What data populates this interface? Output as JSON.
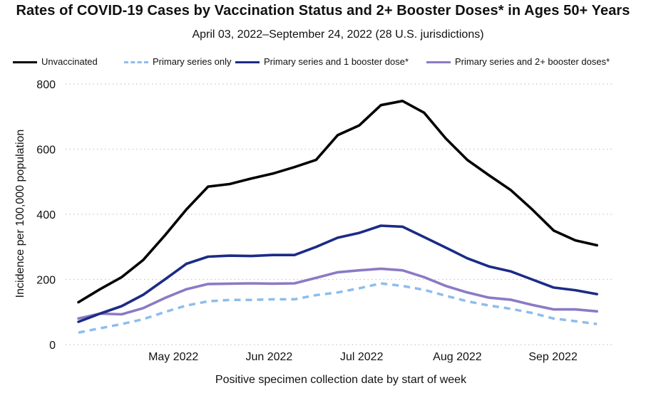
{
  "chart_data": {
    "type": "line",
    "title": "Rates of COVID-19 Cases by Vaccination Status and 2+ Booster Doses* in Ages 50+ Years",
    "subtitle": "April 03, 2022–September 24, 2022 (28 U.S. jurisdictions)",
    "xlabel": "Positive specimen collection date by start of week",
    "ylabel": "Incidence per 100,000 population",
    "ylim": [
      0,
      800
    ],
    "yticks": [
      "0",
      "200",
      "400",
      "600",
      "800"
    ],
    "xtick_labels": [
      "May 2022",
      "Jun 2022",
      "Jul 2022",
      "Aug 2022",
      "Sep 2022"
    ],
    "grid": "horizontal dotted",
    "legend_position": "top",
    "x": [
      "2022-04-03",
      "2022-04-10",
      "2022-04-17",
      "2022-04-24",
      "2022-05-01",
      "2022-05-08",
      "2022-05-15",
      "2022-05-22",
      "2022-05-29",
      "2022-06-05",
      "2022-06-12",
      "2022-06-19",
      "2022-06-26",
      "2022-07-03",
      "2022-07-10",
      "2022-07-17",
      "2022-07-24",
      "2022-07-31",
      "2022-08-07",
      "2022-08-14",
      "2022-08-21",
      "2022-08-28",
      "2022-09-04",
      "2022-09-11",
      "2022-09-18"
    ],
    "series": [
      {
        "name": "Unvaccinated",
        "color": "#000000",
        "style": "solid",
        "values": [
          130,
          170,
          207,
          260,
          335,
          415,
          485,
          493,
          510,
          525,
          545,
          567,
          643,
          673,
          735,
          748,
          712,
          633,
          567,
          520,
          475,
          415,
          350,
          320,
          305
        ]
      },
      {
        "name": "Primary series only",
        "color": "#8dbdec",
        "style": "dashed",
        "values": [
          37,
          50,
          63,
          78,
          100,
          120,
          133,
          137,
          137,
          139,
          139,
          152,
          160,
          173,
          188,
          180,
          168,
          150,
          133,
          120,
          110,
          97,
          80,
          72,
          63
        ]
      },
      {
        "name": "Primary series and 1 booster dose*",
        "color": "#1b2b86",
        "style": "solid",
        "values": [
          70,
          95,
          118,
          153,
          200,
          248,
          270,
          273,
          272,
          275,
          275,
          300,
          328,
          343,
          365,
          362,
          330,
          298,
          265,
          240,
          225,
          200,
          175,
          167,
          155
        ]
      },
      {
        "name": "Primary series and 2+ booster doses*",
        "color": "#8b7ac4",
        "style": "solid",
        "values": [
          80,
          95,
          93,
          112,
          143,
          170,
          186,
          187,
          188,
          187,
          188,
          205,
          222,
          228,
          233,
          228,
          207,
          180,
          160,
          144,
          138,
          122,
          108,
          108,
          102
        ]
      }
    ]
  }
}
